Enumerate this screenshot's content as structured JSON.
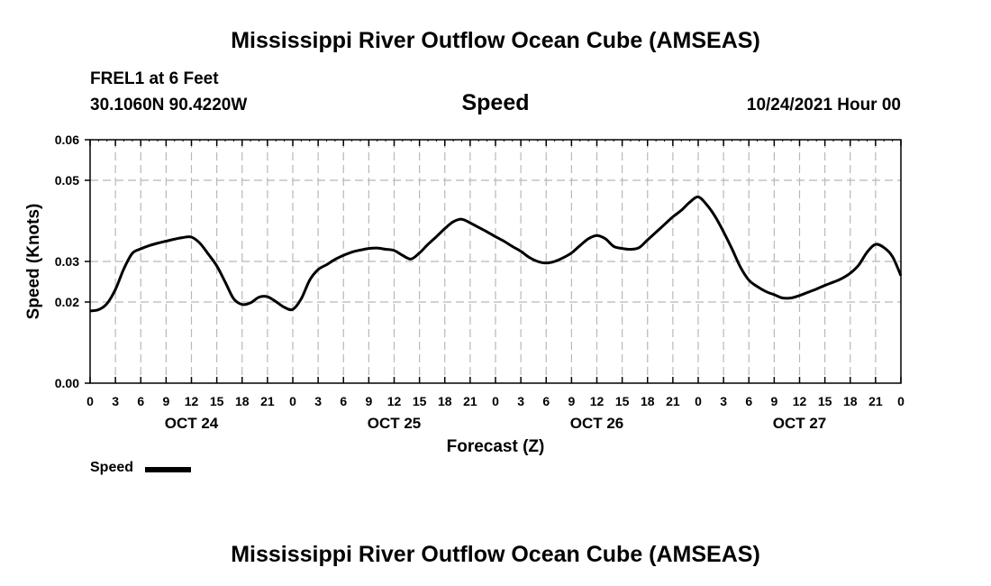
{
  "header": {
    "title": "Mississippi River Outflow Ocean Cube (AMSEAS)",
    "station": "FREL1 at 6 Feet",
    "location": "30.1060N  90.4220W",
    "parameter": "Speed",
    "datetime": "10/24/2021 Hour 00"
  },
  "footer": {
    "title": "Mississippi River Outflow Ocean Cube (AMSEAS)"
  },
  "legend": {
    "label": "Speed",
    "color": "#000000"
  },
  "chart_data": {
    "type": "line",
    "xlabel": "Forecast (Z)",
    "ylabel": "Speed (Knots)",
    "xlim": [
      0,
      96
    ],
    "ylim": [
      0,
      0.06
    ],
    "yticks": [
      0.0,
      0.02,
      0.03,
      0.05,
      0.06
    ],
    "ytick_labels": [
      "0.00",
      "0.02",
      "0.03",
      "0.05",
      "0.06"
    ],
    "xticks": [
      0,
      3,
      6,
      9,
      12,
      15,
      18,
      21,
      24,
      27,
      30,
      33,
      36,
      39,
      42,
      45,
      48,
      51,
      54,
      57,
      60,
      63,
      66,
      69,
      72,
      75,
      78,
      81,
      84,
      87,
      90,
      93,
      96
    ],
    "xtick_labels": [
      "0",
      "3",
      "6",
      "9",
      "12",
      "15",
      "18",
      "21",
      "0",
      "3",
      "6",
      "9",
      "12",
      "15",
      "18",
      "21",
      "0",
      "3",
      "6",
      "9",
      "12",
      "15",
      "18",
      "21",
      "0",
      "3",
      "6",
      "9",
      "12",
      "15",
      "18",
      "21",
      "0"
    ],
    "day_labels": [
      {
        "label": "OCT 24",
        "x": 12
      },
      {
        "label": "OCT 25",
        "x": 36
      },
      {
        "label": "OCT 26",
        "x": 60
      },
      {
        "label": "OCT 27",
        "x": 84
      }
    ],
    "grid": true,
    "legend_position": "bottom-left",
    "series": [
      {
        "name": "Speed",
        "x": [
          0,
          1,
          2,
          3,
          4,
          5,
          6,
          7,
          8,
          9,
          10,
          11,
          12,
          13,
          14,
          15,
          16,
          17,
          18,
          19,
          20,
          21,
          22,
          23,
          24,
          25,
          26,
          27,
          28,
          29,
          30,
          31,
          32,
          33,
          34,
          35,
          36,
          37,
          38,
          39,
          40,
          41,
          42,
          43,
          44,
          45,
          46,
          47,
          48,
          49,
          50,
          51,
          52,
          53,
          54,
          55,
          56,
          57,
          58,
          59,
          60,
          61,
          62,
          63,
          64,
          65,
          66,
          67,
          68,
          69,
          70,
          71,
          72,
          73,
          74,
          75,
          76,
          77,
          78,
          79,
          80,
          81,
          82,
          83,
          84,
          85,
          86,
          87,
          88,
          89,
          90,
          91,
          92,
          93,
          94,
          95,
          96
        ],
        "values": [
          0.0178,
          0.0181,
          0.0196,
          0.0231,
          0.0282,
          0.032,
          0.0331,
          0.0339,
          0.0345,
          0.035,
          0.0355,
          0.0359,
          0.036,
          0.0345,
          0.0318,
          0.0289,
          0.0249,
          0.0208,
          0.0194,
          0.0198,
          0.0212,
          0.0213,
          0.0201,
          0.0187,
          0.0182,
          0.0208,
          0.0254,
          0.028,
          0.0292,
          0.0305,
          0.0315,
          0.0323,
          0.0328,
          0.0332,
          0.0333,
          0.033,
          0.0327,
          0.0315,
          0.0306,
          0.0321,
          0.0342,
          0.0361,
          0.0381,
          0.0398,
          0.0404,
          0.0395,
          0.0384,
          0.0373,
          0.0361,
          0.035,
          0.0337,
          0.0325,
          0.031,
          0.03,
          0.0296,
          0.03,
          0.0309,
          0.0321,
          0.0339,
          0.0356,
          0.0364,
          0.0356,
          0.0337,
          0.0332,
          0.033,
          0.0334,
          0.0353,
          0.0372,
          0.0391,
          0.041,
          0.0426,
          0.0446,
          0.0459,
          0.044,
          0.0411,
          0.0373,
          0.0331,
          0.0286,
          0.0254,
          0.0238,
          0.0226,
          0.0218,
          0.021,
          0.021,
          0.0216,
          0.0224,
          0.0232,
          0.0241,
          0.0249,
          0.0258,
          0.0271,
          0.0291,
          0.0323,
          0.0342,
          0.0334,
          0.0312,
          0.0265
        ]
      }
    ]
  }
}
